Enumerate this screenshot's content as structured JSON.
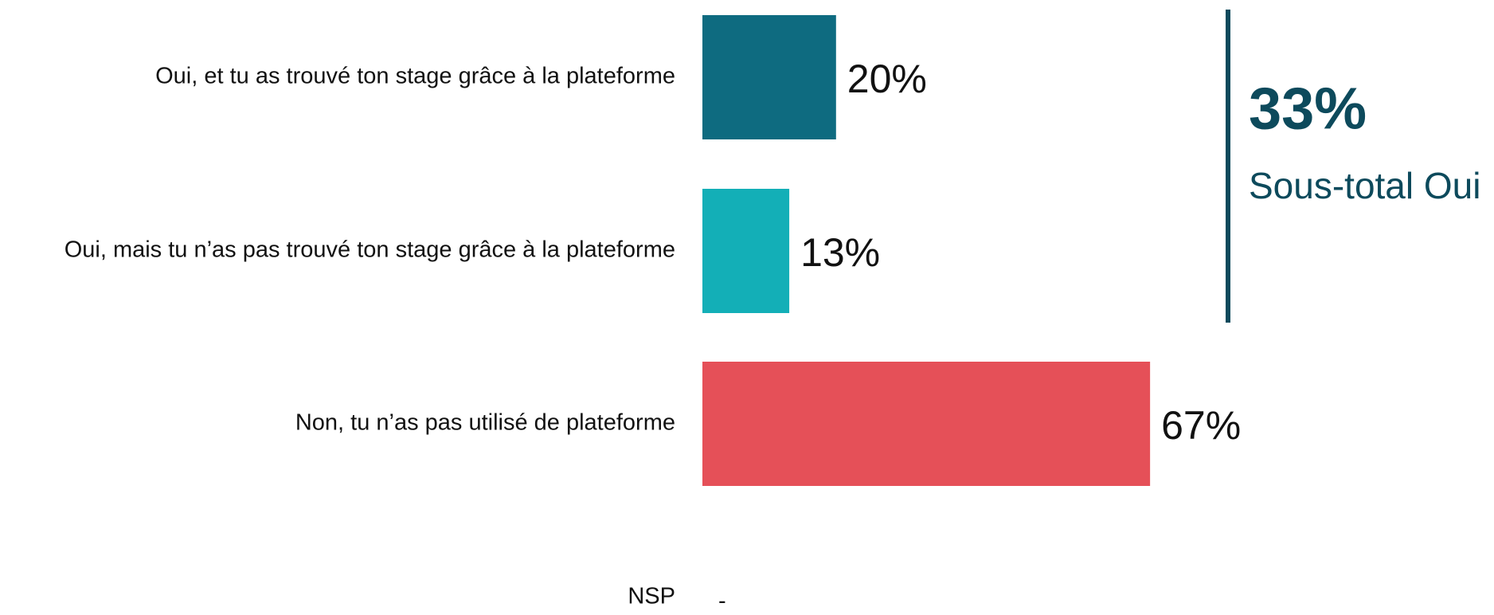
{
  "chart_data": {
    "type": "hbar",
    "categories": [
      "Oui, et tu as trouvé ton stage grâce à la plateforme",
      "Oui, mais tu n’as pas trouvé ton stage grâce à la plateforme",
      "Non, tu n’as pas utilisé de plateforme",
      "NSP"
    ],
    "values": [
      20,
      13,
      67,
      null
    ],
    "value_labels": [
      "20%",
      "13%",
      "67%",
      "-"
    ],
    "colors": [
      "#0e6b80",
      "#13afb7",
      "#e55058",
      "#e55058"
    ],
    "annotations": [
      {
        "text": "33%"
      },
      {
        "text": "Sous-total Oui"
      }
    ]
  }
}
